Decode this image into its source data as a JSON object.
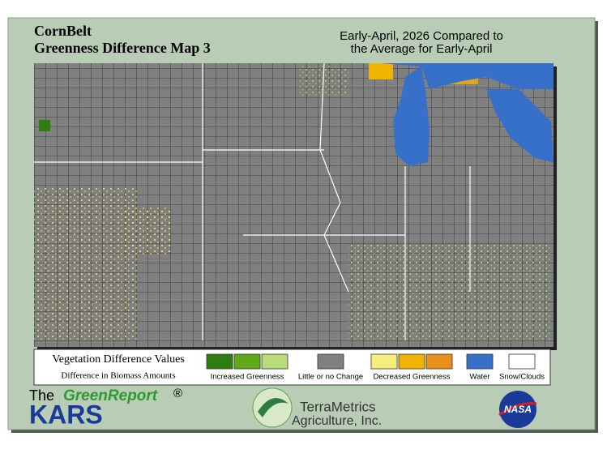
{
  "header": {
    "title": "CornBelt",
    "subtitle": "Greenness Difference Map 3",
    "period_line1": "Early-April, 2026 Compared to",
    "period_line2": "the Average for Early-April"
  },
  "legend": {
    "title": "Vegetation Difference Values",
    "subtitle": "Difference in Biomass Amounts",
    "items": [
      {
        "label": "Increased Greenness",
        "colors": [
          "#2e7d10",
          "#5fa818",
          "#b8dc78"
        ]
      },
      {
        "label": "Little or no Change",
        "colors": [
          "#808080"
        ]
      },
      {
        "label": "Decreased Greenness",
        "colors": [
          "#f6ee7a",
          "#f0b400",
          "#e8901a"
        ]
      },
      {
        "label": "Water",
        "colors": [
          "#3670c8"
        ]
      },
      {
        "label": "Snow/Clouds",
        "colors": [
          "#ffffff"
        ]
      }
    ]
  },
  "footer": {
    "greenreport_prefix": "The",
    "greenreport": "GreenReport",
    "registered": "®",
    "kars": "KARS",
    "terrametrics": "TerraMetrics",
    "agriculture": "Agriculture, Inc.",
    "nasa": "NASA"
  }
}
